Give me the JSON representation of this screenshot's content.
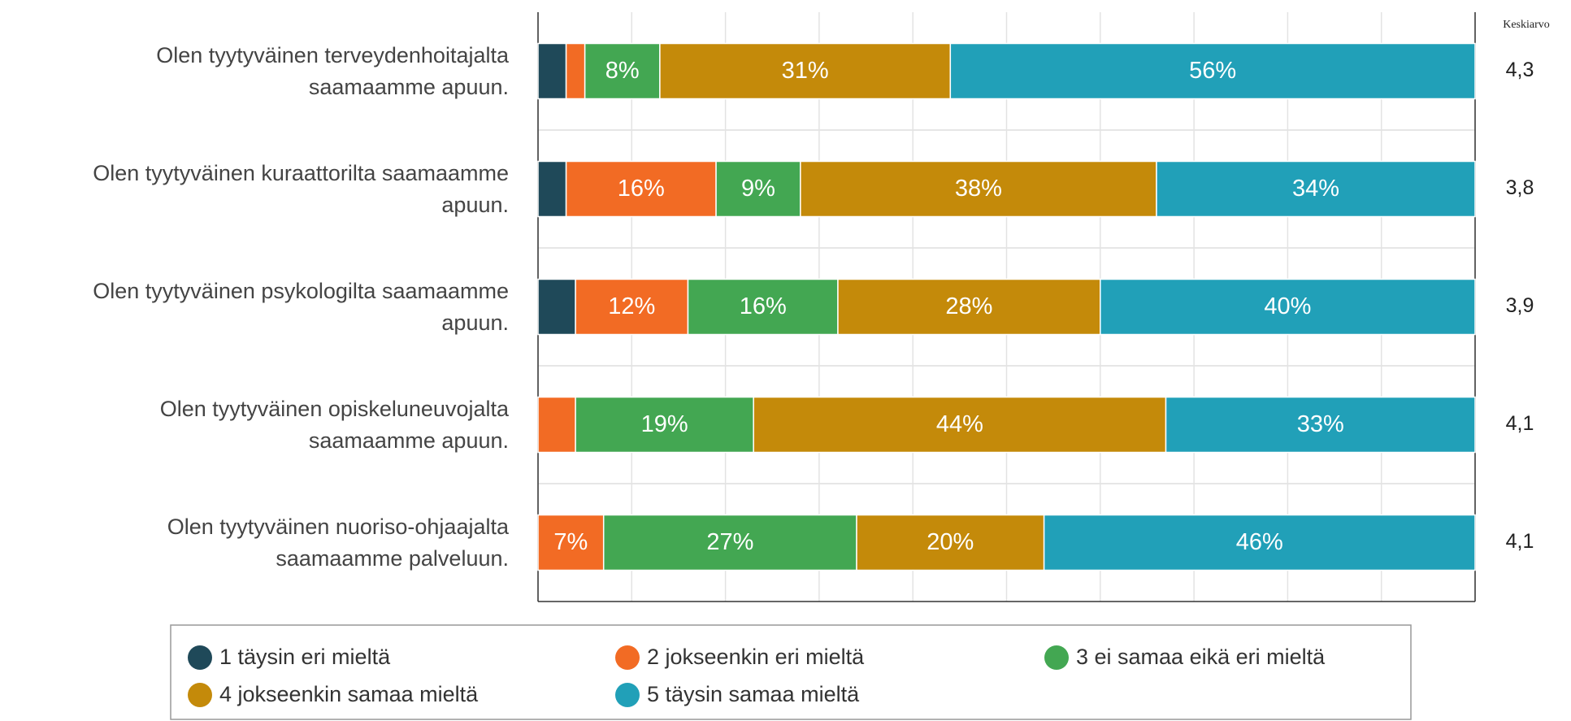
{
  "chart_data": {
    "type": "stacked-bar-horizontal",
    "categories": [
      "Olen tyytyväinen terveydenhoitajalta\nsaamaamme apuun.",
      "Olen tyytyväinen kuraattorilta saamaamme\napuun.",
      "Olen tyytyväinen psykologilta saamaamme\napuun.",
      "Olen tyytyväinen opiskeluneuvojalta\nsaamaamme apuun.",
      "Olen tyytyväinen nuoriso-ohjaajalta\nsaamaamme palveluun."
    ],
    "series": [
      {
        "name": "1 täysin eri mieltä",
        "color": "#1f4959",
        "values": [
          3,
          3,
          4,
          0,
          0
        ],
        "value_labels": [
          null,
          null,
          null,
          null,
          null
        ]
      },
      {
        "name": "2 jokseenkin eri mieltä",
        "color": "#f26b24",
        "values": [
          2,
          16,
          12,
          4,
          7
        ],
        "value_labels": [
          null,
          "16%",
          "12%",
          null,
          "7%"
        ]
      },
      {
        "name": "3 ei samaa eikä eri mieltä",
        "color": "#43a752",
        "values": [
          8,
          9,
          16,
          19,
          27
        ],
        "value_labels": [
          "8%",
          "9%",
          "16%",
          "19%",
          "27%"
        ]
      },
      {
        "name": "4 jokseenkin samaa mieltä",
        "color": "#c48a0a",
        "values": [
          31,
          38,
          28,
          44,
          20
        ],
        "value_labels": [
          "31%",
          "38%",
          "28%",
          "44%",
          "20%"
        ]
      },
      {
        "name": "5 täysin samaa mieltä",
        "color": "#21a0b8",
        "values": [
          56,
          34,
          40,
          33,
          46
        ],
        "value_labels": [
          "56%",
          "34%",
          "40%",
          "33%",
          "46%"
        ]
      }
    ],
    "means": {
      "title": "Keskiarvo",
      "values": [
        4.3,
        3.8,
        3.9,
        4.1,
        4.1
      ],
      "value_labels": [
        "4,3",
        "3,8",
        "3,9",
        "4,1",
        "4,1"
      ]
    },
    "xlim": [
      0,
      100
    ],
    "xticks": [
      0,
      10,
      20,
      30,
      40,
      50,
      60,
      70,
      80,
      90,
      100
    ],
    "grid": true
  }
}
